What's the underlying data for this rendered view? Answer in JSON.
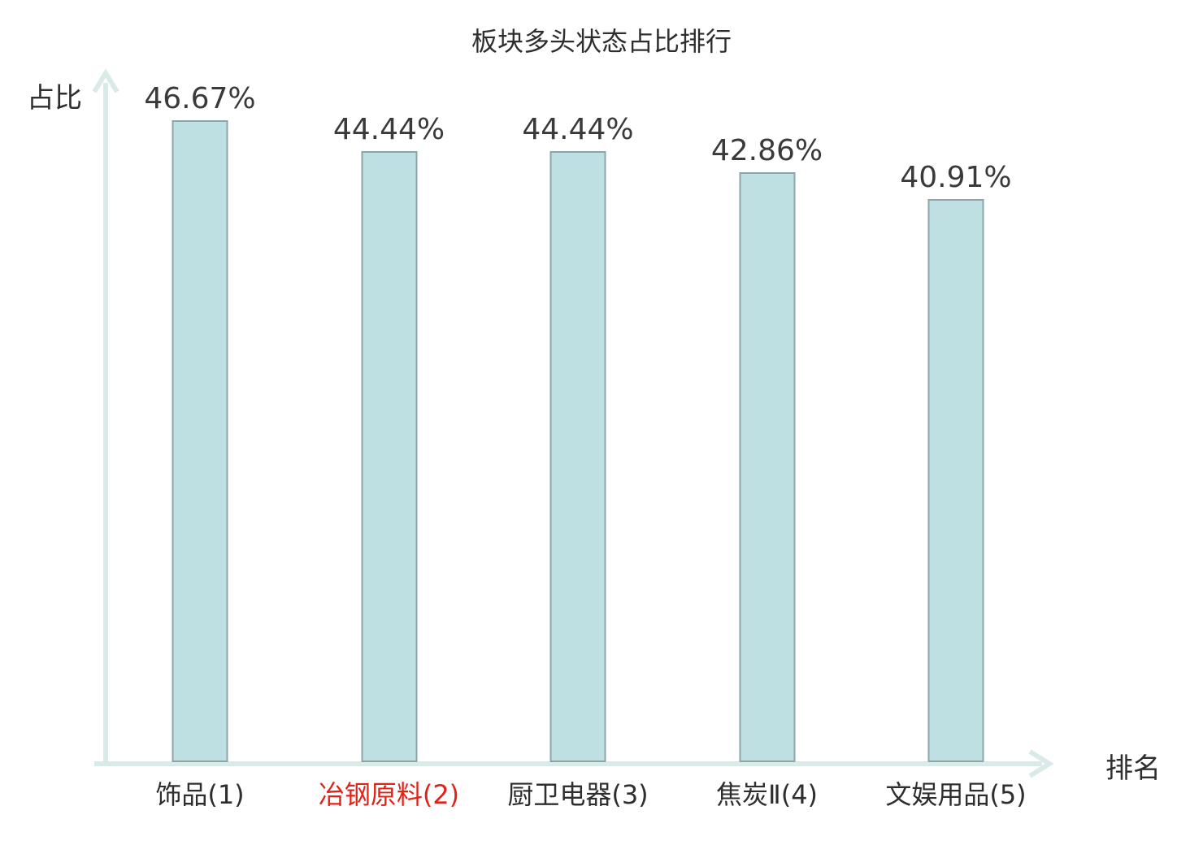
{
  "chart_data": {
    "type": "bar",
    "title": "板块多头状态占比排行",
    "ylabel": "占比",
    "xlabel": "排名",
    "categories": [
      "饰品(1)",
      "冶钢原料(2)",
      "厨卫电器(3)",
      "焦炭Ⅱ(4)",
      "文娱用品(5)"
    ],
    "values": [
      46.67,
      44.44,
      44.44,
      42.86,
      40.91
    ],
    "value_labels": [
      "46.67%",
      "44.44%",
      "44.44%",
      "42.86%",
      "40.91%"
    ],
    "highlighted_category_index": 1,
    "ylim": [
      0,
      50
    ],
    "grid": false,
    "legend_position": "none",
    "axis_ticks": "none",
    "colors": {
      "bar_fill": "#bfe0e3",
      "bar_border": "#8da4a8",
      "axis": "#d9ebe9",
      "label_text": "#2e2e2e",
      "value_text": "#3a3a3a",
      "highlight_text": "#e02318"
    }
  }
}
